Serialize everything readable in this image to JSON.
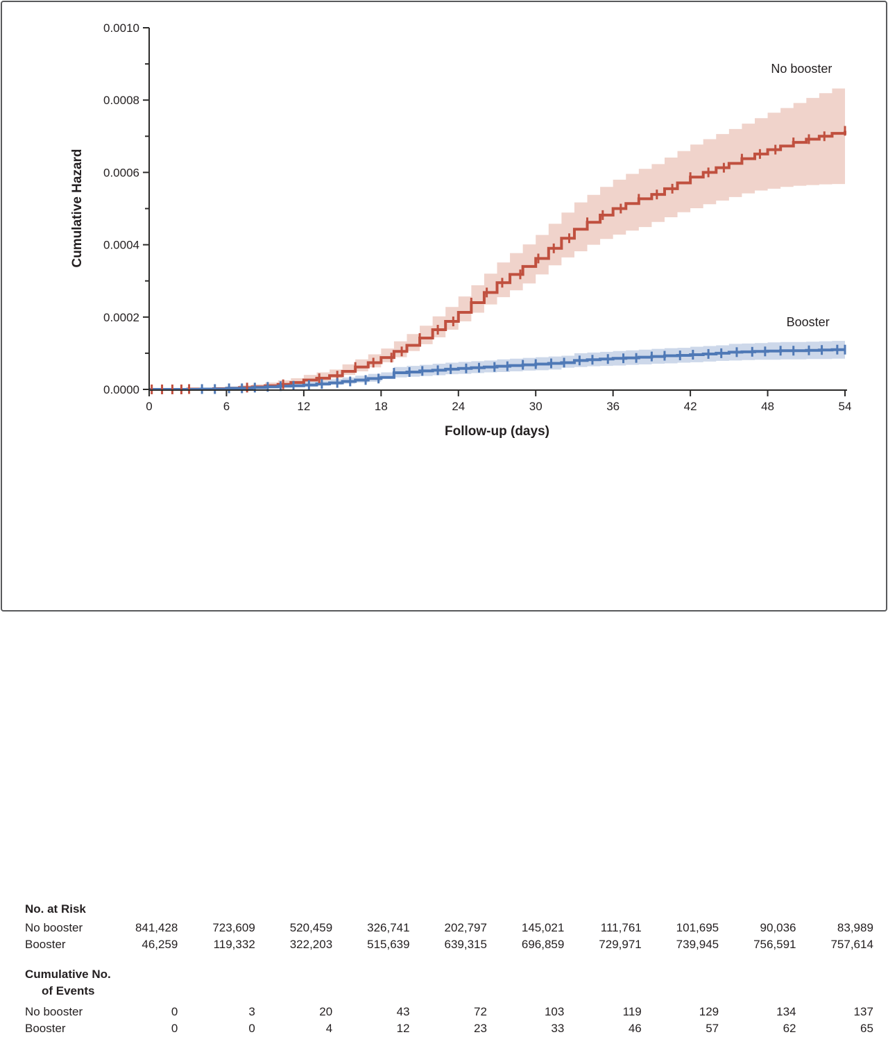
{
  "chart_data": {
    "type": "line",
    "subtype": "cumulative-hazard-step-with-ci",
    "title": "",
    "xlabel": "Follow-up (days)",
    "ylabel": "Cumulative Hazard",
    "xlim": [
      0,
      54
    ],
    "ylim": [
      0,
      0.001
    ],
    "x_tick_labels": [
      "0",
      "6",
      "12",
      "18",
      "24",
      "30",
      "36",
      "42",
      "48",
      "54"
    ],
    "x_tick_values": [
      0,
      6,
      12,
      18,
      24,
      30,
      36,
      42,
      48,
      54
    ],
    "y_tick_labels": [
      "0.0000",
      "0.0002",
      "0.0004",
      "0.0006",
      "0.0008",
      "0.0010"
    ],
    "y_tick_values_e4": [
      0,
      2,
      4,
      6,
      8,
      10
    ],
    "y_minor_tick_values_e4": [
      1,
      3,
      5,
      7,
      9
    ],
    "grid": false,
    "legend_position": "inline-end-labels",
    "value_unit": 0.0001,
    "series": [
      {
        "name": "No booster",
        "color": "#c0503f",
        "band_color": "#f0d3cb",
        "label_x_day": 53.0,
        "label_y_e4": 8.75,
        "points_day_value_lo_hi_e4": [
          [
            0,
            0,
            0,
            0
          ],
          [
            3,
            0.01,
            0,
            0.03
          ],
          [
            5,
            0.02,
            0,
            0.05
          ],
          [
            6,
            0.03,
            0.01,
            0.08
          ],
          [
            7,
            0.05,
            0.01,
            0.11
          ],
          [
            8,
            0.07,
            0.02,
            0.14
          ],
          [
            9,
            0.1,
            0.04,
            0.19
          ],
          [
            10,
            0.14,
            0.06,
            0.25
          ],
          [
            11,
            0.19,
            0.09,
            0.31
          ],
          [
            12,
            0.26,
            0.13,
            0.4
          ],
          [
            13,
            0.31,
            0.17,
            0.47
          ],
          [
            14,
            0.38,
            0.22,
            0.55
          ],
          [
            15,
            0.5,
            0.31,
            0.69
          ],
          [
            16,
            0.62,
            0.4,
            0.83
          ],
          [
            17,
            0.74,
            0.5,
            0.97
          ],
          [
            18,
            0.88,
            0.61,
            1.13
          ],
          [
            19,
            1.05,
            0.75,
            1.33
          ],
          [
            20,
            1.22,
            0.89,
            1.53
          ],
          [
            21,
            1.42,
            1.06,
            1.76
          ],
          [
            22,
            1.65,
            1.25,
            2.02
          ],
          [
            23,
            1.88,
            1.44,
            2.28
          ],
          [
            24,
            2.13,
            1.65,
            2.57
          ],
          [
            25,
            2.4,
            1.88,
            2.88
          ],
          [
            26,
            2.68,
            2.12,
            3.2
          ],
          [
            27,
            2.95,
            2.35,
            3.51
          ],
          [
            28,
            3.18,
            2.55,
            3.77
          ],
          [
            29,
            3.4,
            2.74,
            4.01
          ],
          [
            30,
            3.62,
            2.93,
            4.27
          ],
          [
            31,
            3.9,
            3.18,
            4.58
          ],
          [
            32,
            4.18,
            3.43,
            4.89
          ],
          [
            33,
            4.43,
            3.65,
            5.17
          ],
          [
            34,
            4.62,
            3.82,
            5.38
          ],
          [
            35,
            4.82,
            4.0,
            5.6
          ],
          [
            36,
            5.0,
            4.16,
            5.8
          ],
          [
            37,
            5.14,
            4.28,
            5.96
          ],
          [
            38,
            5.27,
            4.39,
            6.1
          ],
          [
            39,
            5.39,
            4.49,
            6.23
          ],
          [
            40,
            5.55,
            4.63,
            6.41
          ],
          [
            41,
            5.71,
            4.76,
            6.59
          ],
          [
            42,
            5.87,
            4.9,
            6.77
          ],
          [
            43,
            6.0,
            5.01,
            6.92
          ],
          [
            44,
            6.13,
            5.12,
            7.06
          ],
          [
            45,
            6.25,
            5.22,
            7.2
          ],
          [
            46,
            6.38,
            5.32,
            7.35
          ],
          [
            47,
            6.51,
            5.42,
            7.5
          ],
          [
            48,
            6.63,
            5.5,
            7.65
          ],
          [
            49,
            6.73,
            5.55,
            7.78
          ],
          [
            50,
            6.83,
            5.6,
            7.92
          ],
          [
            51,
            6.92,
            5.63,
            8.06
          ],
          [
            52,
            7.0,
            5.65,
            8.19
          ],
          [
            53,
            7.08,
            5.67,
            8.32
          ],
          [
            54,
            7.15,
            5.68,
            8.45
          ]
        ],
        "censor_days": [
          0.2,
          1.0,
          1.8,
          2.5,
          3.1,
          7.6,
          10.4,
          13.2,
          14.6,
          16.0,
          17.4,
          18.8,
          19.6,
          21.0,
          22.4,
          23.6,
          25.0,
          26.2,
          27.4,
          28.8,
          30.2,
          31.4,
          32.6,
          34.0,
          35.2,
          36.6,
          38.0,
          39.4,
          40.6,
          42.0,
          43.4,
          44.6,
          46.0,
          47.4,
          48.6,
          50.0,
          51.2,
          52.4,
          54.0
        ]
      },
      {
        "name": "Booster",
        "color": "#4f79b6",
        "band_color": "#cdd8ea",
        "label_x_day": 52.8,
        "label_y_e4": 1.75,
        "points_day_value_lo_hi_e4": [
          [
            0,
            0,
            0,
            0
          ],
          [
            4,
            0.01,
            0,
            0.03
          ],
          [
            6,
            0.03,
            0.01,
            0.07
          ],
          [
            8,
            0.05,
            0.02,
            0.1
          ],
          [
            9,
            0.07,
            0.03,
            0.13
          ],
          [
            10,
            0.09,
            0.04,
            0.16
          ],
          [
            11,
            0.1,
            0.05,
            0.18
          ],
          [
            12,
            0.12,
            0.06,
            0.21
          ],
          [
            13,
            0.15,
            0.08,
            0.24
          ],
          [
            14,
            0.18,
            0.1,
            0.28
          ],
          [
            15,
            0.22,
            0.13,
            0.33
          ],
          [
            16,
            0.26,
            0.16,
            0.38
          ],
          [
            17,
            0.3,
            0.19,
            0.43
          ],
          [
            18,
            0.33,
            0.21,
            0.47
          ],
          [
            19,
            0.46,
            0.31,
            0.62
          ],
          [
            20,
            0.48,
            0.33,
            0.65
          ],
          [
            21,
            0.51,
            0.35,
            0.68
          ],
          [
            22,
            0.53,
            0.37,
            0.71
          ],
          [
            23,
            0.56,
            0.39,
            0.74
          ],
          [
            24,
            0.58,
            0.42,
            0.76
          ],
          [
            25,
            0.6,
            0.43,
            0.78
          ],
          [
            26,
            0.62,
            0.45,
            0.8
          ],
          [
            27,
            0.64,
            0.47,
            0.83
          ],
          [
            28,
            0.66,
            0.48,
            0.85
          ],
          [
            29,
            0.68,
            0.5,
            0.87
          ],
          [
            30,
            0.7,
            0.52,
            0.89
          ],
          [
            31,
            0.72,
            0.53,
            0.91
          ],
          [
            32,
            0.74,
            0.55,
            0.93
          ],
          [
            33,
            0.8,
            0.6,
            1.0
          ],
          [
            34,
            0.82,
            0.62,
            1.02
          ],
          [
            35,
            0.84,
            0.64,
            1.04
          ],
          [
            36,
            0.86,
            0.65,
            1.06
          ],
          [
            37,
            0.87,
            0.66,
            1.08
          ],
          [
            38,
            0.89,
            0.68,
            1.1
          ],
          [
            39,
            0.91,
            0.69,
            1.12
          ],
          [
            40,
            0.93,
            0.71,
            1.14
          ],
          [
            41,
            0.94,
            0.72,
            1.15
          ],
          [
            42,
            0.96,
            0.74,
            1.18
          ],
          [
            43,
            0.98,
            0.75,
            1.2
          ],
          [
            44,
            1.0,
            0.77,
            1.22
          ],
          [
            45,
            1.03,
            0.79,
            1.26
          ],
          [
            46,
            1.04,
            0.8,
            1.27
          ],
          [
            47,
            1.05,
            0.81,
            1.28
          ],
          [
            48,
            1.06,
            0.82,
            1.3
          ],
          [
            49,
            1.07,
            0.82,
            1.31
          ],
          [
            50,
            1.07,
            0.83,
            1.31
          ],
          [
            51,
            1.08,
            0.83,
            1.32
          ],
          [
            52,
            1.09,
            0.84,
            1.33
          ],
          [
            53,
            1.1,
            0.84,
            1.34
          ],
          [
            54,
            1.1,
            0.85,
            1.36
          ]
        ],
        "censor_days": [
          4.1,
          5.1,
          6.2,
          7.2,
          8.2,
          9.2,
          10.2,
          11.2,
          12.4,
          13.4,
          14.6,
          15.6,
          16.8,
          17.8,
          19.0,
          20.2,
          21.2,
          22.4,
          23.4,
          24.6,
          25.6,
          26.8,
          27.8,
          29.0,
          30.0,
          31.2,
          32.2,
          33.4,
          34.4,
          35.6,
          36.8,
          37.8,
          39.0,
          40.0,
          41.2,
          42.2,
          43.4,
          44.4,
          45.6,
          46.8,
          47.8,
          49.0,
          50.0,
          51.2,
          52.2,
          53.4,
          54.0
        ]
      }
    ],
    "table": {
      "at_risk_header": "No. at Risk",
      "events_header_line1": "Cumulative No.",
      "events_header_line2": "of Events",
      "row_labels": {
        "no_booster": "No booster",
        "booster": "Booster"
      },
      "at_risk": {
        "no_booster": [
          "841,428",
          "723,609",
          "520,459",
          "326,741",
          "202,797",
          "145,021",
          "111,761",
          "101,695",
          "90,036",
          "83,989"
        ],
        "booster": [
          "46,259",
          "119,332",
          "322,203",
          "515,639",
          "639,315",
          "696,859",
          "729,971",
          "739,945",
          "756,591",
          "757,614"
        ]
      },
      "events": {
        "no_booster": [
          "0",
          "3",
          "20",
          "43",
          "72",
          "103",
          "119",
          "129",
          "134",
          "137"
        ],
        "booster": [
          "0",
          "0",
          "4",
          "12",
          "23",
          "33",
          "46",
          "57",
          "62",
          "65"
        ]
      }
    }
  }
}
